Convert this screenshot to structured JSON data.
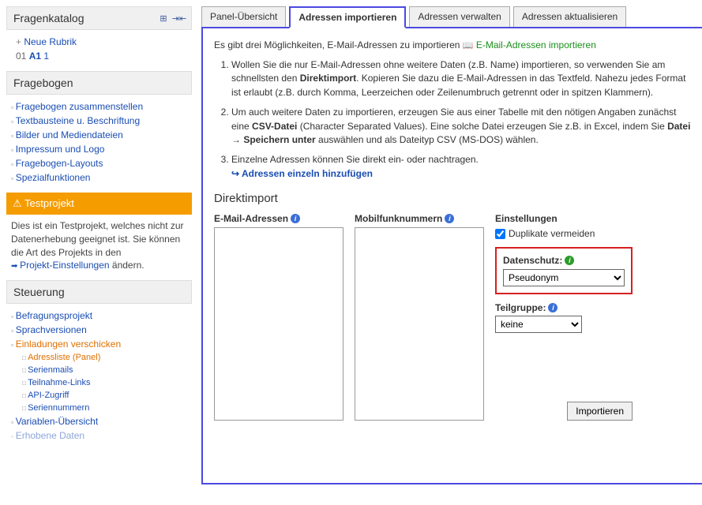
{
  "sidebar": {
    "section_fragenkatalog": "Fragenkatalog",
    "neue_rubrik": "Neue Rubrik",
    "rubrik_num": "01",
    "rubrik_code": "A1",
    "rubrik_count": "1",
    "section_fragebogen": "Fragebogen",
    "fragebogen_items": [
      "Fragebogen zusammenstellen",
      "Textbausteine u. Beschriftung",
      "Bilder und Mediendateien",
      "Impressum und Logo",
      "Fragebogen-Layouts",
      "Spezialfunktionen"
    ],
    "testprojekt_title": "Testprojekt",
    "testprojekt_text_1": "Dies ist ein Testprojekt, welches nicht zur Datenerhebung geeignet ist. Sie können die Art des Projekts in den ",
    "testprojekt_link": "Projekt-Einstellungen",
    "testprojekt_text_2": " ändern.",
    "section_steuerung": "Steuerung",
    "steuerung_items": [
      "Befragungsprojekt",
      "Sprachversionen",
      "Einladungen verschicken"
    ],
    "einladungen_sub": [
      "Adressliste (Panel)",
      "Serienmails",
      "Teilnahme-Links",
      "API-Zugriff",
      "Seriennummern"
    ],
    "steuerung_after": [
      "Variablen-Übersicht",
      "Erhobene Daten"
    ]
  },
  "tabs": [
    "Panel-Übersicht",
    "Adressen importieren",
    "Adressen verwalten",
    "Adressen aktualisieren"
  ],
  "panel": {
    "intro_1": "Es gibt drei Möglichkeiten, E-Mail-Adressen zu importieren ",
    "intro_link": "E-Mail-Adressen importieren",
    "li1_a": "Wollen Sie die nur E-Mail-Adressen ohne weitere Daten (z.B. Name) importieren, so verwenden Sie am schnellsten den ",
    "li1_bold": "Direktimport",
    "li1_b": ". Kopieren Sie dazu die E-Mail-Adressen in das Textfeld. Nahezu jedes Format ist erlaubt (z.B. durch Komma, Leerzeichen oder Zeilenumbruch getrennt oder in spitzen Klammern).",
    "li2_a": "Um auch weitere Daten zu importieren, erzeugen Sie aus einer Tabelle mit den nötigen Angaben zunächst eine ",
    "li2_bold1": "CSV-Datei",
    "li2_b": " (Character Separated Values). Eine solche Datei erzeugen Sie z.B. in Excel, indem Sie ",
    "li2_bold2": "Datei → Speichern unter",
    "li2_c": " auswählen und als Dateityp CSV (MS-DOS) wählen.",
    "li3": "Einzelne Adressen können Sie direkt ein- oder nachtragen.",
    "li3_link": "Adressen einzeln hinzufügen",
    "subhead": "Direktimport",
    "label_email": "E-Mail-Adressen",
    "label_mobil": "Mobilfunknummern",
    "label_settings": "Einstellungen",
    "chk_dup": "Duplikate vermeiden",
    "label_datenschutz": "Datenschutz:",
    "select_datenschutz": "Pseudonym",
    "label_teilgruppe": "Teilgruppe:",
    "select_teilgruppe": "keine",
    "btn_import": "Importieren"
  }
}
